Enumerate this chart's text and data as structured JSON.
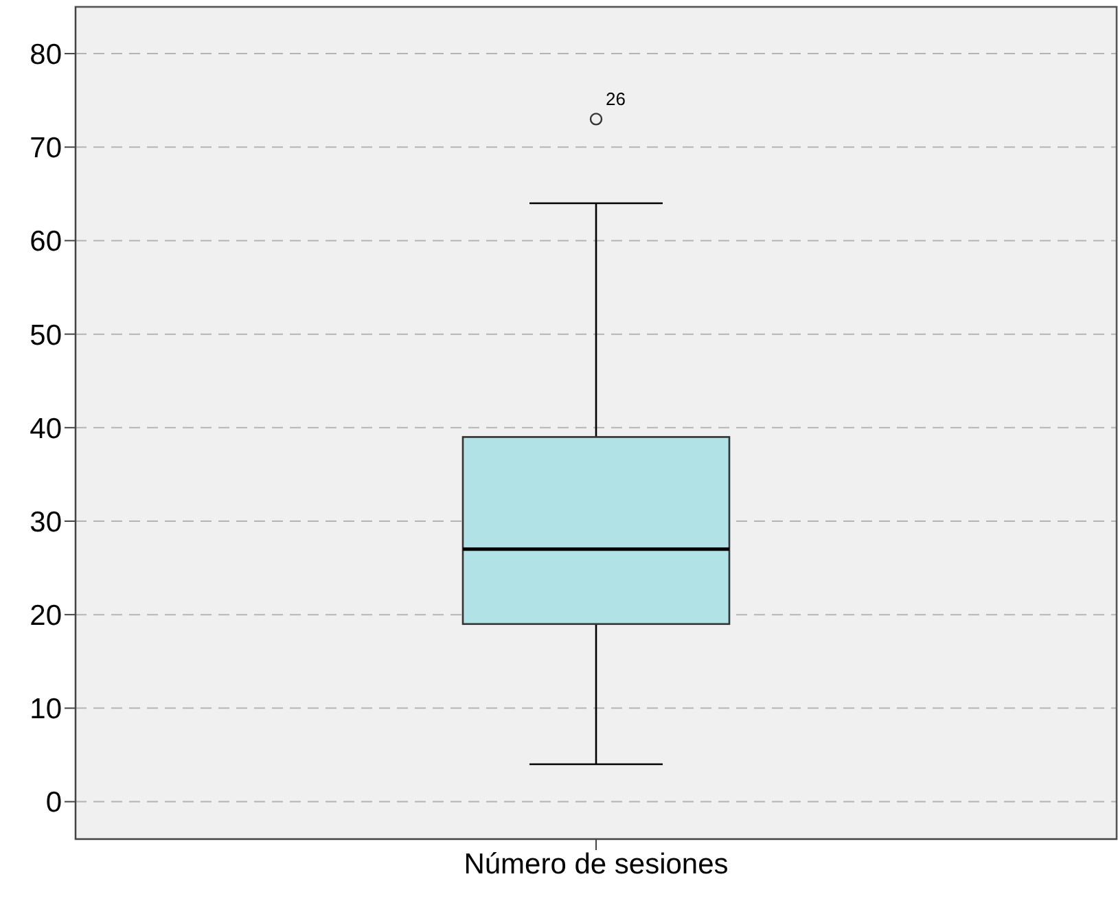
{
  "chart_data": {
    "type": "box",
    "categories": [
      "Número de sesiones"
    ],
    "boxes": [
      {
        "low": 4,
        "q1": 19,
        "median": 27,
        "q3": 39,
        "high": 64,
        "outliers": [
          73
        ]
      }
    ],
    "color": "#b0e2e6",
    "annotations": [
      "26"
    ],
    "ylim": [
      -4,
      85
    ],
    "yticks": [
      0,
      10,
      20,
      30,
      40,
      50,
      60,
      70,
      80
    ],
    "grid": "y"
  }
}
